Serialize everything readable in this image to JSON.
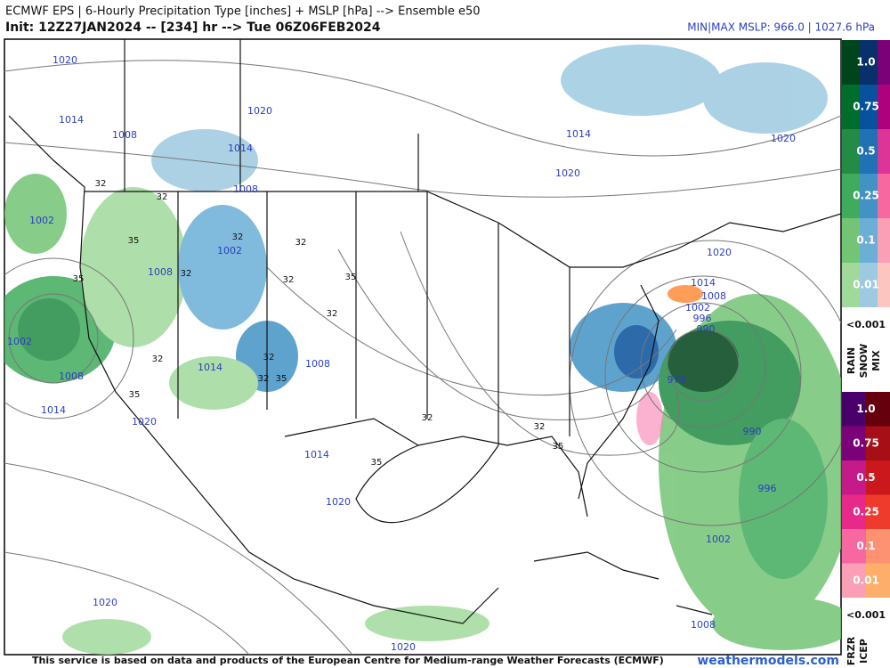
{
  "header": {
    "title": "ECMWF EPS | 6-Hourly Precipitation Type [inches] + MSLP [hPa] --> Ensemble e50",
    "subtitle": "Init: 12Z27JAN2024 -- [234] hr --> Tue 06Z06FEB2024",
    "minmax": "MIN|MAX MSLP: 966.0 | 1027.6 hPa"
  },
  "legend": {
    "rain_snow_mix": {
      "levels": [
        "1.0",
        "0.75",
        "0.5",
        "0.25",
        "0.1",
        "0.01"
      ],
      "below": "<0.001",
      "types": [
        "RAIN",
        "SNOW",
        "MIX"
      ]
    },
    "frzr_icep": {
      "levels": [
        "1.0",
        "0.75",
        "0.5",
        "0.25",
        "0.1",
        "0.01"
      ],
      "below": "<0.001",
      "types": [
        "FRZR",
        "ICEP"
      ]
    }
  },
  "map": {
    "isobar_labels": [
      1020,
      1014,
      1008,
      1020,
      1014,
      1008,
      1002,
      1002,
      1008,
      1002,
      1008,
      1014,
      1014,
      1008,
      1020,
      1014,
      1020,
      1020,
      1020,
      1014,
      1020,
      1020,
      1020,
      1014,
      1008,
      1002,
      996,
      990,
      978,
      990,
      996,
      1002,
      1008
    ],
    "temperature_labels": [
      32,
      32,
      35,
      32,
      32,
      32,
      35,
      32,
      35,
      32,
      32,
      32,
      32,
      35,
      35,
      32,
      32,
      35,
      35
    ]
  },
  "footer": {
    "credit": "This service is based on data and products of the European Centre for Medium-range Weather Forecasts (ECMWF)",
    "site": "weathermodels.com"
  }
}
